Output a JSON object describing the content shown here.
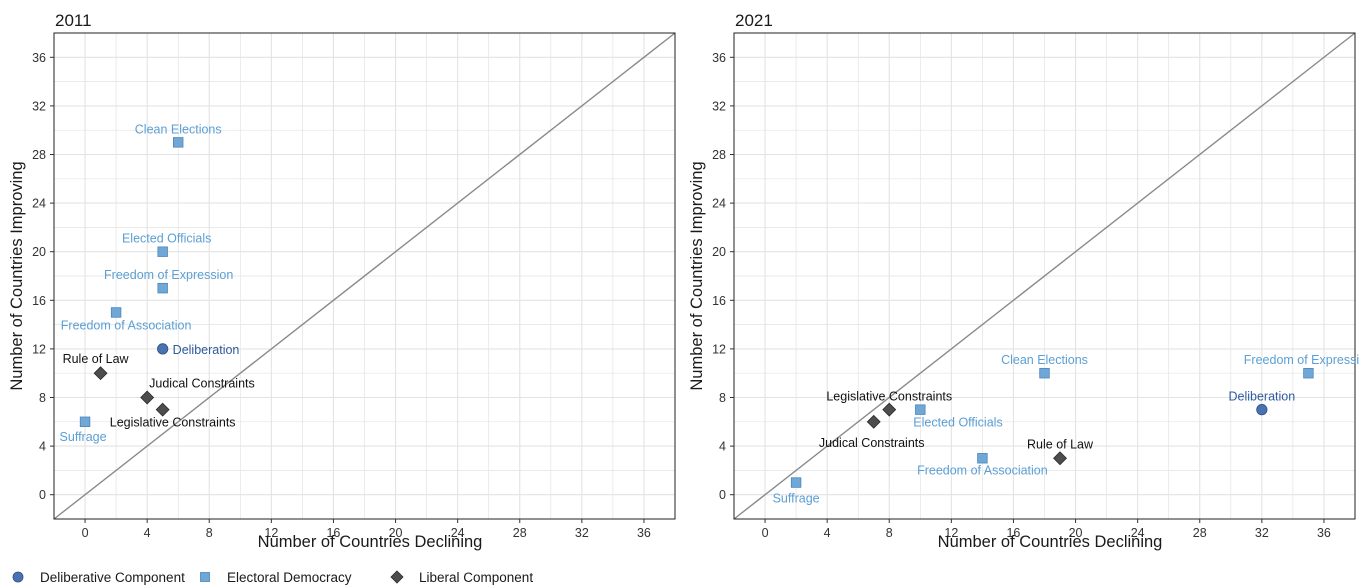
{
  "colors": {
    "deliberative": "#4a72b0",
    "electoral": "#6fa7d6",
    "electoral_label": "#5b9fd4",
    "deliberative_label": "#2f5c9e",
    "liberal": "#4d4d4d",
    "liberal_label": "#111111",
    "grid": "#e3e3e3",
    "diagonal": "#8a8a8a"
  },
  "legend": {
    "items": [
      {
        "key": "deliberative",
        "label": "Deliberative Component",
        "shape": "circle"
      },
      {
        "key": "electoral",
        "label": "Electoral Democracy",
        "shape": "square"
      },
      {
        "key": "liberal",
        "label": "Liberal Component",
        "shape": "diamond"
      }
    ]
  },
  "chart_data": [
    {
      "type": "scatter",
      "title": "2011",
      "xlabel": "Number of Countries Declining",
      "ylabel": "Number of Countries Improving",
      "xlim": [
        -2,
        38
      ],
      "ylim": [
        -2,
        38
      ],
      "xticks": [
        0,
        4,
        8,
        12,
        16,
        20,
        24,
        28,
        32,
        36
      ],
      "yticks": [
        0,
        4,
        8,
        12,
        16,
        20,
        24,
        28,
        32,
        36
      ],
      "diagonal": true,
      "grid": true,
      "points": [
        {
          "label": "Clean Elections",
          "group": "electoral",
          "x": 6,
          "y": 29
        },
        {
          "label": "Elected Officials",
          "group": "electoral",
          "x": 5,
          "y": 20
        },
        {
          "label": "Freedom of Expression",
          "group": "electoral",
          "x": 5,
          "y": 17
        },
        {
          "label": "Freedom of Association",
          "group": "electoral",
          "x": 2,
          "y": 15
        },
        {
          "label": "Deliberation",
          "group": "deliberative",
          "x": 5,
          "y": 12
        },
        {
          "label": "Rule of Law",
          "group": "liberal",
          "x": 1,
          "y": 10
        },
        {
          "label": "Judical Constraints",
          "group": "liberal",
          "x": 4,
          "y": 8
        },
        {
          "label": "Legislative Constraints",
          "group": "liberal",
          "x": 5,
          "y": 7
        },
        {
          "label": "Suffrage",
          "group": "electoral",
          "x": 0,
          "y": 6
        }
      ]
    },
    {
      "type": "scatter",
      "title": "2021",
      "xlabel": "Number of Countries Declining",
      "ylabel": "Number of Countries Improving",
      "xlim": [
        -2,
        38
      ],
      "ylim": [
        -2,
        38
      ],
      "xticks": [
        0,
        4,
        8,
        12,
        16,
        20,
        24,
        28,
        32,
        36
      ],
      "yticks": [
        0,
        4,
        8,
        12,
        16,
        20,
        24,
        28,
        32,
        36
      ],
      "diagonal": true,
      "grid": true,
      "points": [
        {
          "label": "Clean Elections",
          "group": "electoral",
          "x": 18,
          "y": 10
        },
        {
          "label": "Freedom of Expression",
          "group": "electoral",
          "x": 35,
          "y": 10
        },
        {
          "label": "Deliberation",
          "group": "deliberative",
          "x": 32,
          "y": 7
        },
        {
          "label": "Legislative Constraints",
          "group": "liberal",
          "x": 8,
          "y": 7
        },
        {
          "label": "Elected Officials",
          "group": "electoral",
          "x": 10,
          "y": 7
        },
        {
          "label": "Judical Constraints",
          "group": "liberal",
          "x": 7,
          "y": 6
        },
        {
          "label": "Rule of Law",
          "group": "liberal",
          "x": 19,
          "y": 3
        },
        {
          "label": "Freedom of Association",
          "group": "electoral",
          "x": 14,
          "y": 3
        },
        {
          "label": "Suffrage",
          "group": "electoral",
          "x": 2,
          "y": 1
        }
      ]
    }
  ]
}
